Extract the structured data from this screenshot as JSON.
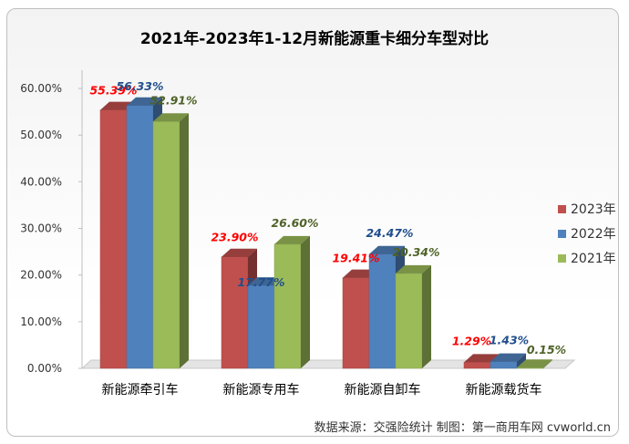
{
  "source_note": "数据来源：交强险统计 制图：第一商用车网 cvworld.cn",
  "chart_data": {
    "type": "bar",
    "title": "2021年-2023年1-12月新能源重卡细分车型对比",
    "categories": [
      "新能源牵引车",
      "新能源专用车",
      "新能源自卸车",
      "新能源载货车"
    ],
    "series": [
      {
        "name": "2023年",
        "values": [
          55.39,
          23.9,
          19.41,
          1.29
        ],
        "labels": [
          "55.39%",
          "23.90%",
          "19.41%",
          "1.29%"
        ],
        "color": "#c0504d",
        "label_color": "#ff0000"
      },
      {
        "name": "2022年",
        "values": [
          56.33,
          17.77,
          24.47,
          1.43
        ],
        "labels": [
          "56.33%",
          "17.77%",
          "24.47%",
          "1.43%"
        ],
        "color": "#4f81bd",
        "label_color": "#1f4e8c"
      },
      {
        "name": "2021年",
        "values": [
          52.91,
          26.6,
          20.34,
          0.15
        ],
        "labels": [
          "52.91%",
          "26.60%",
          "20.34%",
          "0.15%"
        ],
        "color": "#9bbb59",
        "label_color": "#4f6228"
      }
    ],
    "yticks": [
      "0.00%",
      "10.00%",
      "20.00%",
      "30.00%",
      "40.00%",
      "50.00%",
      "60.00%"
    ],
    "ylim": [
      0,
      60
    ],
    "legend_position": "right",
    "grid": false
  }
}
